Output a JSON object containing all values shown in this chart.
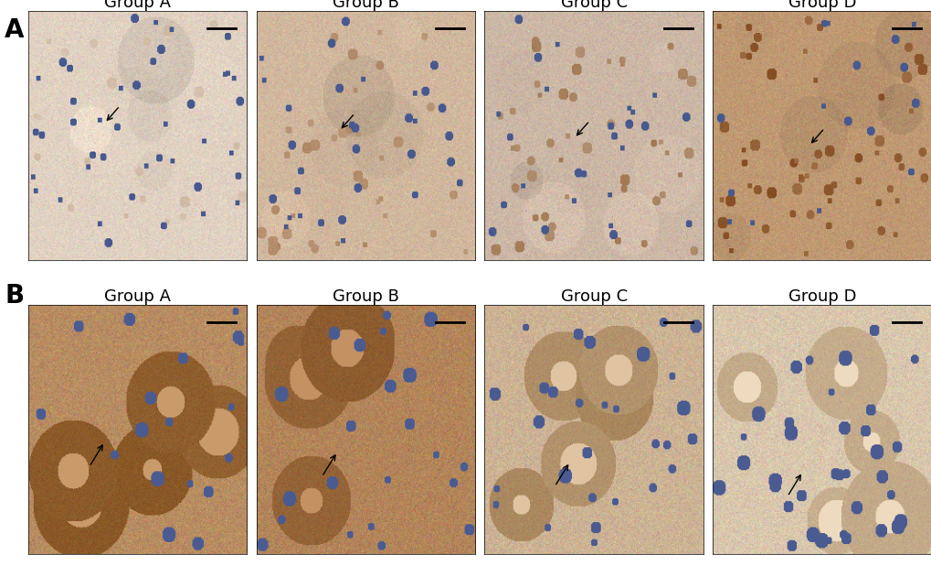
{
  "panel_labels": [
    "A",
    "B"
  ],
  "group_labels": [
    "Group A",
    "Group B",
    "Group C",
    "Group D"
  ],
  "panel_label_fontsize": 20,
  "group_label_fontsize": 13,
  "background_color": "#ffffff",
  "figure_width": 10.2,
  "figure_height": 6.19,
  "rows": 2,
  "cols": 4,
  "row_A_colors": [
    {
      "bg": [
        0.88,
        0.82,
        0.76
      ],
      "cell_brown": [
        0.55,
        0.35,
        0.15
      ],
      "cell_blue": [
        0.4,
        0.5,
        0.7
      ],
      "stain_level": 0.2
    },
    {
      "bg": [
        0.82,
        0.72,
        0.62
      ],
      "cell_brown": [
        0.5,
        0.28,
        0.1
      ],
      "cell_blue": [
        0.4,
        0.5,
        0.7
      ],
      "stain_level": 0.45
    },
    {
      "bg": [
        0.8,
        0.72,
        0.65
      ],
      "cell_brown": [
        0.52,
        0.3,
        0.1
      ],
      "cell_blue": [
        0.4,
        0.5,
        0.7
      ],
      "stain_level": 0.6
    },
    {
      "bg": [
        0.75,
        0.6,
        0.45
      ],
      "cell_brown": [
        0.48,
        0.25,
        0.08
      ],
      "cell_blue": [
        0.4,
        0.5,
        0.7
      ],
      "stain_level": 0.85
    }
  ],
  "row_B_colors": [
    {
      "bg": [
        0.72,
        0.55,
        0.38
      ],
      "cell_brown": [
        0.5,
        0.3,
        0.1
      ],
      "cell_blue": [
        0.45,
        0.55,
        0.72
      ],
      "stain_level": 0.9
    },
    {
      "bg": [
        0.7,
        0.52,
        0.35
      ],
      "cell_brown": [
        0.48,
        0.28,
        0.1
      ],
      "cell_blue": [
        0.45,
        0.55,
        0.72
      ],
      "stain_level": 0.75
    },
    {
      "bg": [
        0.8,
        0.7,
        0.58
      ],
      "cell_brown": [
        0.52,
        0.35,
        0.15
      ],
      "cell_blue": [
        0.45,
        0.55,
        0.72
      ],
      "stain_level": 0.5
    },
    {
      "bg": [
        0.85,
        0.78,
        0.68
      ],
      "cell_brown": [
        0.55,
        0.38,
        0.18
      ],
      "cell_blue": [
        0.45,
        0.55,
        0.72
      ],
      "stain_level": 0.3
    }
  ],
  "scale_bar_color": "#000000",
  "arrow_color": "#000000",
  "panel_label_color": "#000000",
  "group_label_color": "#000000"
}
